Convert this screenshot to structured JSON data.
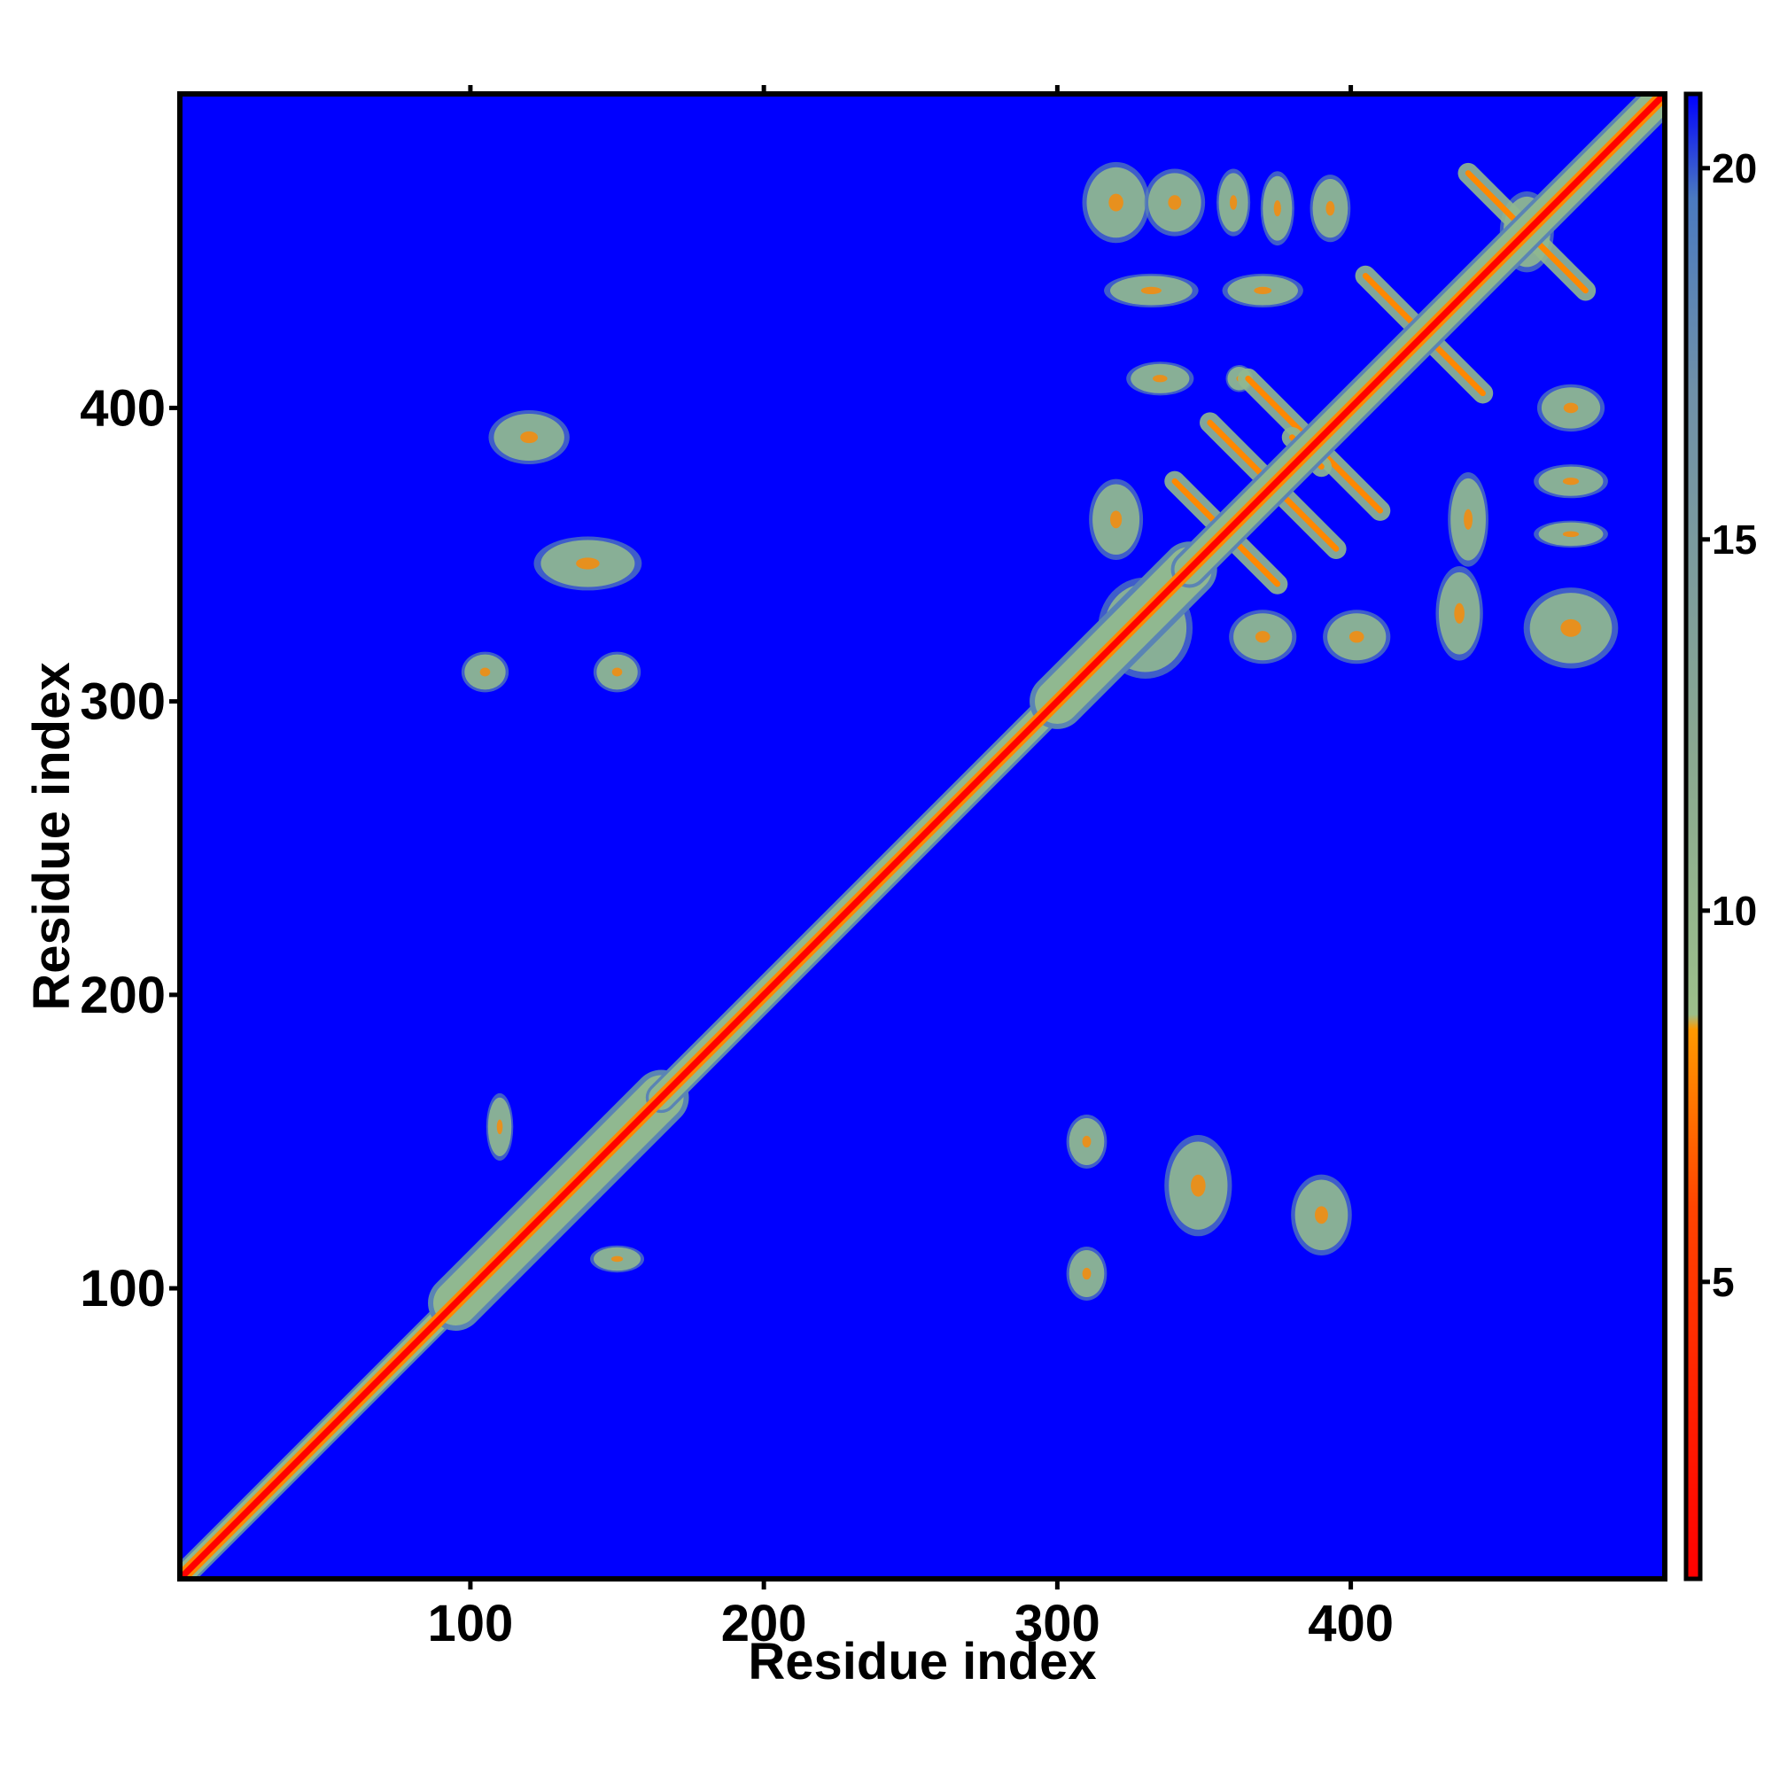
{
  "chart_data": {
    "type": "heatmap",
    "title": "",
    "xlabel": "Residue index",
    "ylabel": "Residue index",
    "xlim": [
      1,
      507
    ],
    "ylim": [
      1,
      507
    ],
    "x_ticks": [
      100,
      200,
      300,
      400
    ],
    "y_ticks": [
      100,
      200,
      300,
      400
    ],
    "colorbar": {
      "range": [
        1,
        21
      ],
      "ticks": [
        5,
        10,
        15,
        20
      ],
      "colors": {
        "near": "#ff0000",
        "mid": "#ff8800",
        "contact": "#90b890",
        "edge": "#5a84b4",
        "far": "#0000ff"
      }
    },
    "diagonal_bands": [
      {
        "from": 1,
        "to": 90,
        "width": 4
      },
      {
        "from": 95,
        "to": 165,
        "width": 9
      },
      {
        "from": 165,
        "to": 300,
        "width": 5
      },
      {
        "from": 300,
        "to": 345,
        "width": 9
      },
      {
        "from": 345,
        "to": 505,
        "width": 6
      }
    ],
    "antidiagonal_contacts": [
      {
        "a": [
          340,
          375
        ],
        "b": [
          375,
          340
        ]
      },
      {
        "a": [
          352,
          395
        ],
        "b": [
          395,
          352
        ]
      },
      {
        "a": [
          365,
          410
        ],
        "b": [
          410,
          365
        ]
      },
      {
        "a": [
          380,
          390
        ],
        "b": [
          390,
          380
        ]
      },
      {
        "a": [
          405,
          445
        ],
        "b": [
          445,
          405
        ]
      },
      {
        "a": [
          440,
          480
        ],
        "b": [
          480,
          440
        ]
      }
    ],
    "contact_clusters": [
      {
        "x": 120,
        "y": 390,
        "rx": 12,
        "ry": 8
      },
      {
        "x": 140,
        "y": 347,
        "rx": 16,
        "ry": 8
      },
      {
        "x": 105,
        "y": 310,
        "rx": 7,
        "ry": 6
      },
      {
        "x": 150,
        "y": 310,
        "rx": 7,
        "ry": 6
      },
      {
        "x": 110,
        "y": 155,
        "rx": 4,
        "ry": 10
      },
      {
        "x": 150,
        "y": 110,
        "rx": 8,
        "ry": 4
      },
      {
        "x": 310,
        "y": 150,
        "rx": 6,
        "ry": 8
      },
      {
        "x": 348,
        "y": 135,
        "rx": 10,
        "ry": 15
      },
      {
        "x": 390,
        "y": 125,
        "rx": 9,
        "ry": 12
      },
      {
        "x": 310,
        "y": 105,
        "rx": 6,
        "ry": 8
      },
      {
        "x": 320,
        "y": 470,
        "rx": 10,
        "ry": 12
      },
      {
        "x": 340,
        "y": 470,
        "rx": 9,
        "ry": 10
      },
      {
        "x": 360,
        "y": 470,
        "rx": 5,
        "ry": 10
      },
      {
        "x": 375,
        "y": 468,
        "rx": 5,
        "ry": 11
      },
      {
        "x": 393,
        "y": 468,
        "rx": 6,
        "ry": 10
      },
      {
        "x": 332,
        "y": 440,
        "rx": 14,
        "ry": 5
      },
      {
        "x": 370,
        "y": 440,
        "rx": 12,
        "ry": 5
      },
      {
        "x": 335,
        "y": 410,
        "rx": 10,
        "ry": 5
      },
      {
        "x": 475,
        "y": 400,
        "rx": 10,
        "ry": 7
      },
      {
        "x": 475,
        "y": 375,
        "rx": 11,
        "ry": 5
      },
      {
        "x": 475,
        "y": 357,
        "rx": 11,
        "ry": 4
      },
      {
        "x": 440,
        "y": 362,
        "rx": 6,
        "ry": 14
      },
      {
        "x": 437,
        "y": 330,
        "rx": 7,
        "ry": 14
      },
      {
        "x": 475,
        "y": 325,
        "rx": 14,
        "ry": 12
      },
      {
        "x": 320,
        "y": 362,
        "rx": 8,
        "ry": 12
      },
      {
        "x": 330,
        "y": 325,
        "rx": 14,
        "ry": 15
      },
      {
        "x": 370,
        "y": 322,
        "rx": 10,
        "ry": 8
      },
      {
        "x": 402,
        "y": 322,
        "rx": 10,
        "ry": 8
      },
      {
        "x": 460,
        "y": 460,
        "rx": 8,
        "ry": 12
      },
      {
        "x": 362,
        "y": 410,
        "rx": 4,
        "ry": 4
      }
    ]
  }
}
